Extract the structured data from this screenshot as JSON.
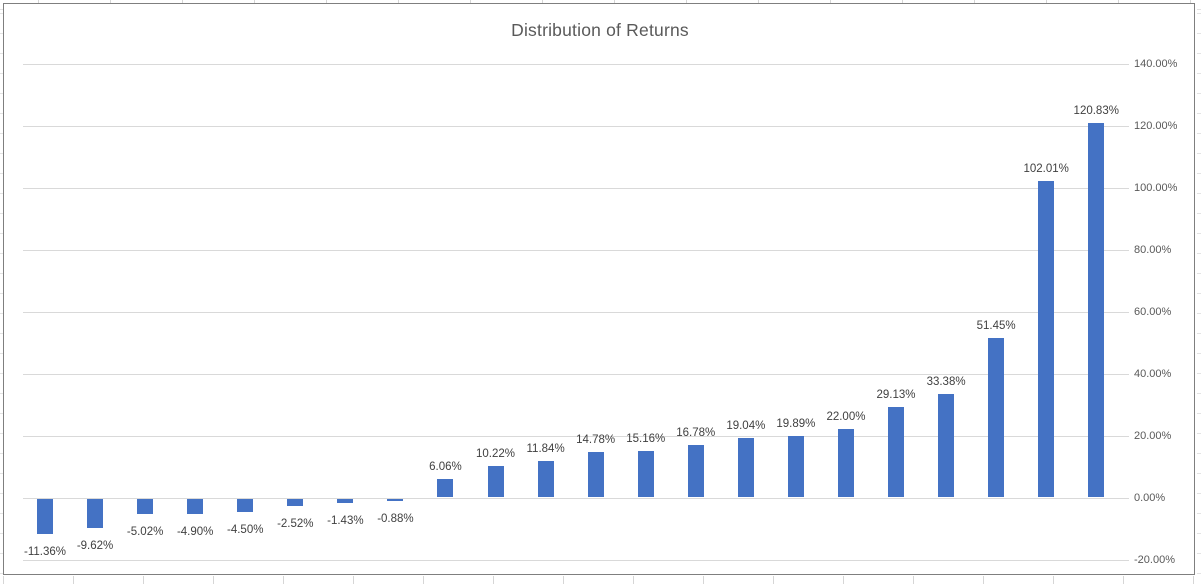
{
  "chart_data": {
    "type": "bar",
    "title": "Distribution of Returns",
    "values": [
      -11.36,
      -9.62,
      -5.02,
      -4.9,
      -4.5,
      -2.52,
      -1.43,
      -0.88,
      6.06,
      10.22,
      11.84,
      14.78,
      15.16,
      16.78,
      19.04,
      19.89,
      22.0,
      29.13,
      33.38,
      51.45,
      102.01,
      120.83
    ],
    "data_labels": [
      "-11.36%",
      "-9.62%",
      "-5.02%",
      "-4.90%",
      "-4.50%",
      "-2.52%",
      "-1.43%",
      "-0.88%",
      "6.06%",
      "10.22%",
      "11.84%",
      "14.78%",
      "15.16%",
      "16.78%",
      "19.04%",
      "19.89%",
      "22.00%",
      "29.13%",
      "33.38%",
      "51.45%",
      "102.01%",
      "120.83%"
    ],
    "series_count": 1,
    "legend": "none",
    "grid": true,
    "y_axis": {
      "position": "right",
      "min": -20,
      "max": 140,
      "tick_labels": [
        "140.00%",
        "120.00%",
        "100.00%",
        "80.00%",
        "60.00%",
        "40.00%",
        "20.00%",
        "0.00%",
        "-20.00%"
      ],
      "tick_values": [
        140,
        120,
        100,
        80,
        60,
        40,
        20,
        0,
        -20
      ]
    },
    "x_axis": {
      "category_labels_visible": false
    },
    "colors": {
      "bar": "#4472C4",
      "gridline": "#D9D9D9",
      "title_text": "#595959",
      "axis_text": "#595959",
      "label_text": "#404040",
      "chart_border": "#7F7F7F"
    }
  }
}
